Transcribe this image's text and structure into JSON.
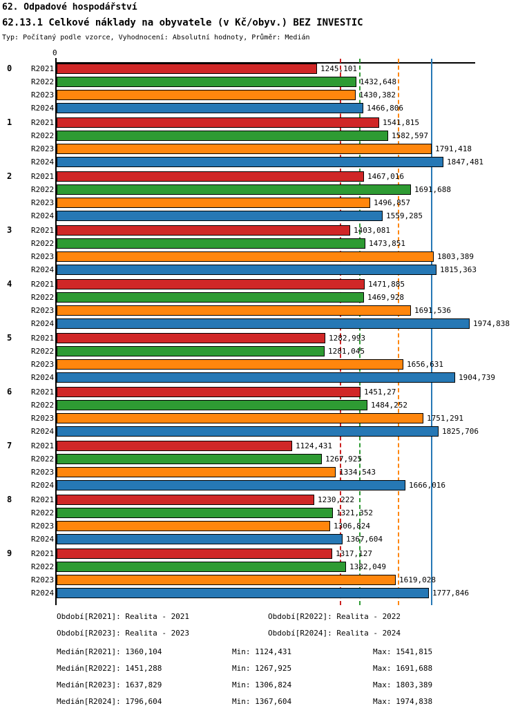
{
  "page": {
    "title": "62. Odpadové hospodářství",
    "subtitle": "62.13.1 Celkové náklady na obyvatele (v Kč/obyv.) BEZ INVESTIC",
    "meta": "Typ: Počítaný podle vzorce, Vyhodnocení: Absolutní hodnoty, Průměr: Medián"
  },
  "chart_data": {
    "type": "bar",
    "orientation": "horizontal",
    "title": "62.13.1 Celkové náklady na obyvatele (v Kč/obyv.) BEZ INVESTIC",
    "xlabel": "Kč/obyv.",
    "axis": {
      "min": 0,
      "max": 2000,
      "origin_tick_label": "0",
      "grid": "median-lines"
    },
    "categories": [
      "0",
      "1",
      "2",
      "3",
      "4",
      "5",
      "6",
      "7",
      "8",
      "9"
    ],
    "series": [
      {
        "name": "R2021",
        "color": "#d02727",
        "values": [
          1245.101,
          1541.815,
          1467.016,
          1403.081,
          1471.885,
          1282.993,
          1451.27,
          1124.431,
          1230.222,
          1317.127
        ],
        "labels": [
          "1245,101",
          "1541,815",
          "1467,016",
          "1403,081",
          "1471,885",
          "1282,993",
          "1451,27",
          "1124,431",
          "1230,222",
          "1317,127"
        ]
      },
      {
        "name": "R2022",
        "color": "#2e9b33",
        "values": [
          1432.648,
          1582.597,
          1691.688,
          1473.851,
          1469.928,
          1281.045,
          1484.252,
          1267.925,
          1321.352,
          1382.049
        ],
        "labels": [
          "1432,648",
          "1582,597",
          "1691,688",
          "1473,851",
          "1469,928",
          "1281,045",
          "1484,252",
          "1267,925",
          "1321,352",
          "1382,049"
        ]
      },
      {
        "name": "R2023",
        "color": "#ff860d",
        "values": [
          1430.382,
          1791.418,
          1496.857,
          1803.389,
          1691.536,
          1656.631,
          1751.291,
          1334.543,
          1306.824,
          1619.028
        ],
        "labels": [
          "1430,382",
          "1791,418",
          "1496,857",
          "1803,389",
          "1691,536",
          "1656,631",
          "1751,291",
          "1334,543",
          "1306,824",
          "1619,028"
        ]
      },
      {
        "name": "R2024",
        "color": "#2678b5",
        "values": [
          1466.806,
          1847.481,
          1559.285,
          1815.363,
          1974.838,
          1904.739,
          1825.706,
          1666.016,
          1367.604,
          1777.846
        ],
        "labels": [
          "1466,806",
          "1847,481",
          "1559,285",
          "1815,363",
          "1974,838",
          "1904,739",
          "1825,706",
          "1666,016",
          "1367,604",
          "1777,846"
        ]
      }
    ],
    "median_lines": [
      {
        "series": "R2021",
        "value": 1360.104,
        "color": "#cc2222",
        "style": "dashed"
      },
      {
        "series": "R2022",
        "value": 1451.288,
        "color": "#2e9b33",
        "style": "dashed"
      },
      {
        "series": "R2023",
        "value": 1637.829,
        "color": "#ff860d",
        "style": "dashed"
      },
      {
        "series": "R2024",
        "value": 1796.604,
        "color": "#2678b5",
        "style": "solid"
      }
    ]
  },
  "legend": {
    "items": [
      "Období[R2021]: Realita - 2021",
      "Období[R2022]: Realita - 2022",
      "Období[R2023]: Realita - 2023",
      "Období[R2024]: Realita - 2024"
    ]
  },
  "stats": {
    "rows": [
      {
        "median": "Medián[R2021]: 1360,104",
        "min": "Min: 1124,431",
        "max": "Max: 1541,815"
      },
      {
        "median": "Medián[R2022]: 1451,288",
        "min": "Min: 1267,925",
        "max": "Max: 1691,688"
      },
      {
        "median": "Medián[R2023]: 1637,829",
        "min": "Min: 1306,824",
        "max": "Max: 1803,389"
      },
      {
        "median": "Medián[R2024]: 1796,604",
        "min": "Min: 1367,604",
        "max": "Max: 1974,838"
      }
    ]
  }
}
